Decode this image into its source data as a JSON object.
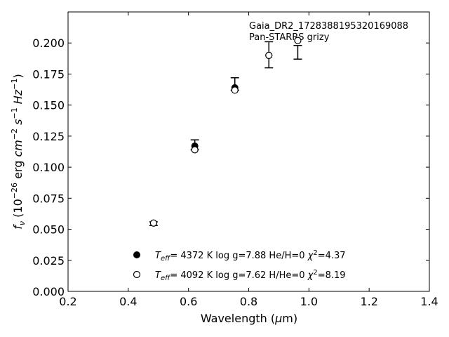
{
  "chart_data": {
    "type": "scatter",
    "title": "",
    "annotations": [
      "Gaia_DR2_1728388195320169088",
      "Pan-STARRS grizy"
    ],
    "xlabel": "Wavelength (μm)",
    "ylabel": "f_ν (10^-26 erg cm^-2 s^-1 Hz^-1)",
    "xlim": [
      0.2,
      1.4
    ],
    "ylim": [
      0.0,
      0.225
    ],
    "xticks": [
      0.2,
      0.4,
      0.6,
      0.8,
      1.0,
      1.2,
      1.4
    ],
    "xtick_labels": [
      "0.2",
      "0.4",
      "0.6",
      "0.8",
      "1.0",
      "1.2",
      "1.4"
    ],
    "yticks": [
      0.0,
      0.025,
      0.05,
      0.075,
      0.1,
      0.125,
      0.15,
      0.175,
      0.2
    ],
    "ytick_labels": [
      "0.000",
      "0.025",
      "0.050",
      "0.075",
      "0.100",
      "0.125",
      "0.150",
      "0.175",
      "0.200"
    ],
    "observed": {
      "x": [
        0.484,
        0.621,
        0.754,
        0.867,
        0.963
      ],
      "y": [
        0.055,
        0.117,
        0.163,
        0.19,
        0.202
      ],
      "err_low": [
        0.053,
        0.114,
        0.162,
        0.18,
        0.187
      ],
      "err_high": [
        0.056,
        0.122,
        0.172,
        0.201,
        0.198
      ]
    },
    "series": [
      {
        "marker": "filled-circle",
        "teff_value": "4372 K",
        "rest": "log g=7.88  He/H=0",
        "chi2_value": "=4.37",
        "x": [
          0.484,
          0.621,
          0.754,
          0.867,
          0.963
        ],
        "y": [
          0.055,
          0.117,
          0.164,
          0.19,
          0.202
        ]
      },
      {
        "marker": "open-circle",
        "teff_value": "4092 K",
        "rest": "log g=7.62  H/He=0",
        "chi2_value": "=8.19",
        "x": [
          0.484,
          0.621,
          0.754,
          0.867,
          0.963
        ],
        "y": [
          0.055,
          0.114,
          0.162,
          0.19,
          0.202
        ]
      }
    ],
    "legend_position": "lower-center",
    "grid": false
  }
}
